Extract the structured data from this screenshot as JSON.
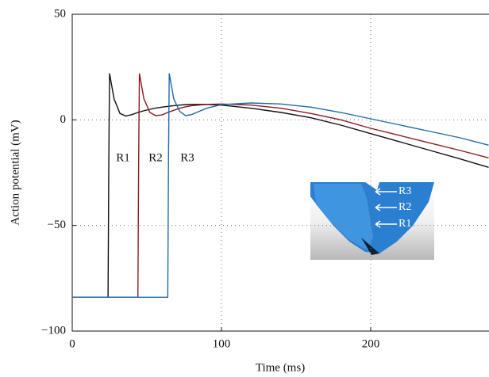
{
  "chart_data": {
    "type": "line",
    "x_label": "Time (ms)",
    "y_label": "Action potential (mV)",
    "x": [
      0,
      24,
      24.5,
      25,
      28,
      32,
      36,
      40,
      44,
      44.5,
      45,
      48,
      52,
      56,
      60,
      64,
      64.5,
      65,
      68,
      72,
      76,
      80,
      90,
      100,
      120,
      140,
      160,
      180,
      200,
      220,
      240,
      260,
      279
    ],
    "series": [
      {
        "name": "R1",
        "color": "#111111",
        "values": [
          -84,
          -84,
          -20,
          22,
          10,
          3,
          1.8,
          2.5,
          3.5,
          3.6,
          3.7,
          4.3,
          5,
          5.6,
          6,
          6.4,
          6.4,
          6.5,
          6.7,
          7,
          7.2,
          7.3,
          7.3,
          7,
          5.5,
          3.5,
          1,
          -2.5,
          -6.5,
          -10.5,
          -14.5,
          -18.5,
          -22.5
        ]
      },
      {
        "name": "R2",
        "color": "#8b1a24",
        "values": [
          -84,
          -84,
          -84,
          -84,
          -84,
          -84,
          -84,
          -84,
          -84,
          -20,
          22,
          10,
          3.5,
          2,
          2.3,
          3.5,
          3.6,
          3.8,
          4.5,
          5.5,
          6.2,
          6.7,
          7.3,
          7.5,
          7,
          5.5,
          3,
          0,
          -4,
          -7.5,
          -11,
          -14.5,
          -18
        ]
      },
      {
        "name": "R3",
        "color": "#1f6aa8",
        "values": [
          -84,
          -84,
          -84,
          -84,
          -84,
          -84,
          -84,
          -84,
          -84,
          -84,
          -84,
          -84,
          -84,
          -84,
          -84,
          -84,
          -20,
          22,
          10,
          4,
          2,
          2.5,
          5.5,
          7.2,
          8,
          7.5,
          6,
          3.5,
          0.5,
          -2.5,
          -5.5,
          -8.5,
          -12
        ]
      }
    ],
    "xlim": [
      0,
      279
    ],
    "ylim": [
      -100,
      50
    ],
    "xticks": [
      0,
      100,
      200
    ],
    "yticks": [
      {
        "value": -100,
        "label": "−100"
      },
      {
        "value": -50,
        "label": "−50"
      },
      0,
      50
    ],
    "grid": true,
    "annotations": [
      "R1",
      "R2",
      "R3"
    ],
    "inset_labels": [
      "R3",
      "R2",
      "R1"
    ]
  }
}
